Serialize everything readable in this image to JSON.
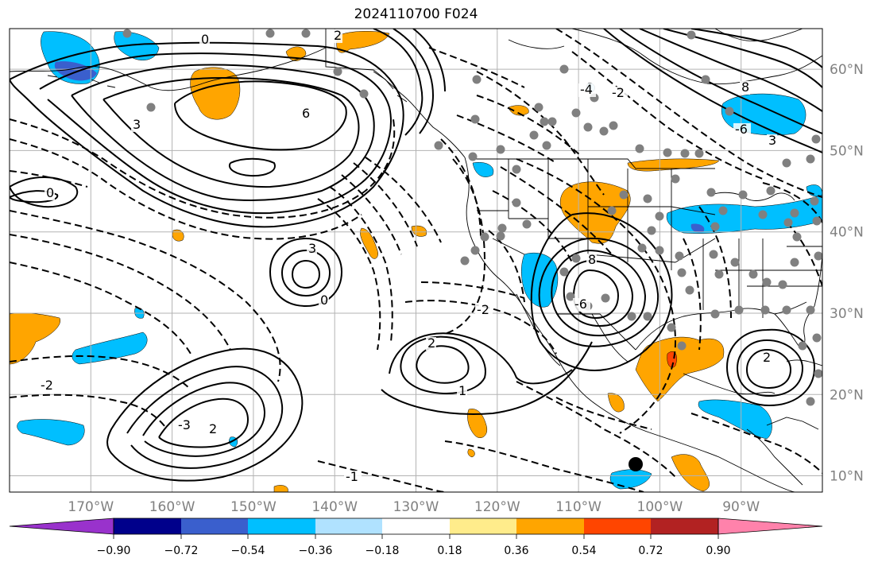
{
  "title": "2024110700 F024",
  "map": {
    "lon_range": [
      -180,
      -80
    ],
    "lat_range": [
      8,
      65
    ],
    "lat_labels": [
      "60°N",
      "50°N",
      "40°N",
      "30°N",
      "20°N",
      "10°N"
    ],
    "lon_labels": [
      "170°W",
      "160°W",
      "150°W",
      "140°W",
      "130°W",
      "120°W",
      "110°W",
      "100°W",
      "90°W"
    ],
    "grid": true,
    "contour_labels": [
      "0",
      "2",
      "3",
      "6",
      "-2",
      "1",
      "2",
      "-2",
      "3",
      "8",
      "-6",
      "2",
      "0",
      "-3",
      "2",
      "-1",
      "-4",
      "8",
      "-6",
      "3",
      "0",
      "-2"
    ]
  },
  "colorbar": {
    "ticks": [
      "−0.90",
      "−0.72",
      "−0.54",
      "−0.36",
      "−0.18",
      "0.18",
      "0.36",
      "0.54",
      "0.72",
      "0.90"
    ],
    "colors": [
      "#9932cc",
      "#00008b",
      "#3a5fcd",
      "#00bfff",
      "#b0e2ff",
      "#ffffff",
      "#ffec8b",
      "#ffa500",
      "#ff4500",
      "#b22222",
      "#ff82ab"
    ],
    "extend": "both"
  },
  "colors": {
    "grid": "#b3b3b3",
    "coast": "#000000",
    "orange": "#ffa500",
    "light_blue": "#00bfff",
    "dot": "#808080"
  }
}
